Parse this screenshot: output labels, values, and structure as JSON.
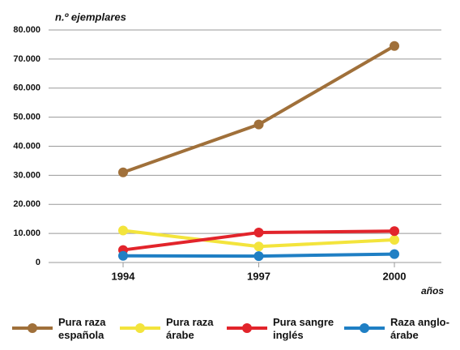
{
  "chart_data": {
    "type": "line",
    "y_label": "n.º ejemplares",
    "x_label": "años",
    "categories": [
      "1994",
      "1997",
      "2000"
    ],
    "series": [
      {
        "name": "Pura raza española",
        "color": "#a0703a",
        "values": [
          31000,
          47500,
          74500
        ]
      },
      {
        "name": "Pura raza árabe",
        "color": "#f3e43c",
        "values": [
          11000,
          5500,
          7800
        ]
      },
      {
        "name": "Pura sangre inglés",
        "color": "#e2242b",
        "values": [
          4300,
          10300,
          10800
        ]
      },
      {
        "name": "Raza anglo-árabe",
        "color": "#1f7fc4",
        "values": [
          2300,
          2200,
          2900
        ]
      }
    ],
    "ylim": [
      0,
      80000
    ],
    "yticks": [
      0,
      {
        "value": 10000,
        "label": "10.000"
      },
      {
        "value": 20000,
        "label": "20.000"
      },
      {
        "value": 30000,
        "label": "30.000"
      },
      {
        "value": 40000,
        "label": "40.000"
      },
      {
        "value": 50000,
        "label": "50.000"
      },
      {
        "value": 60000,
        "label": "60.000"
      },
      {
        "value": 70000,
        "label": "70.000"
      },
      {
        "value": 80000,
        "label": "80.000"
      }
    ],
    "grid": true
  }
}
